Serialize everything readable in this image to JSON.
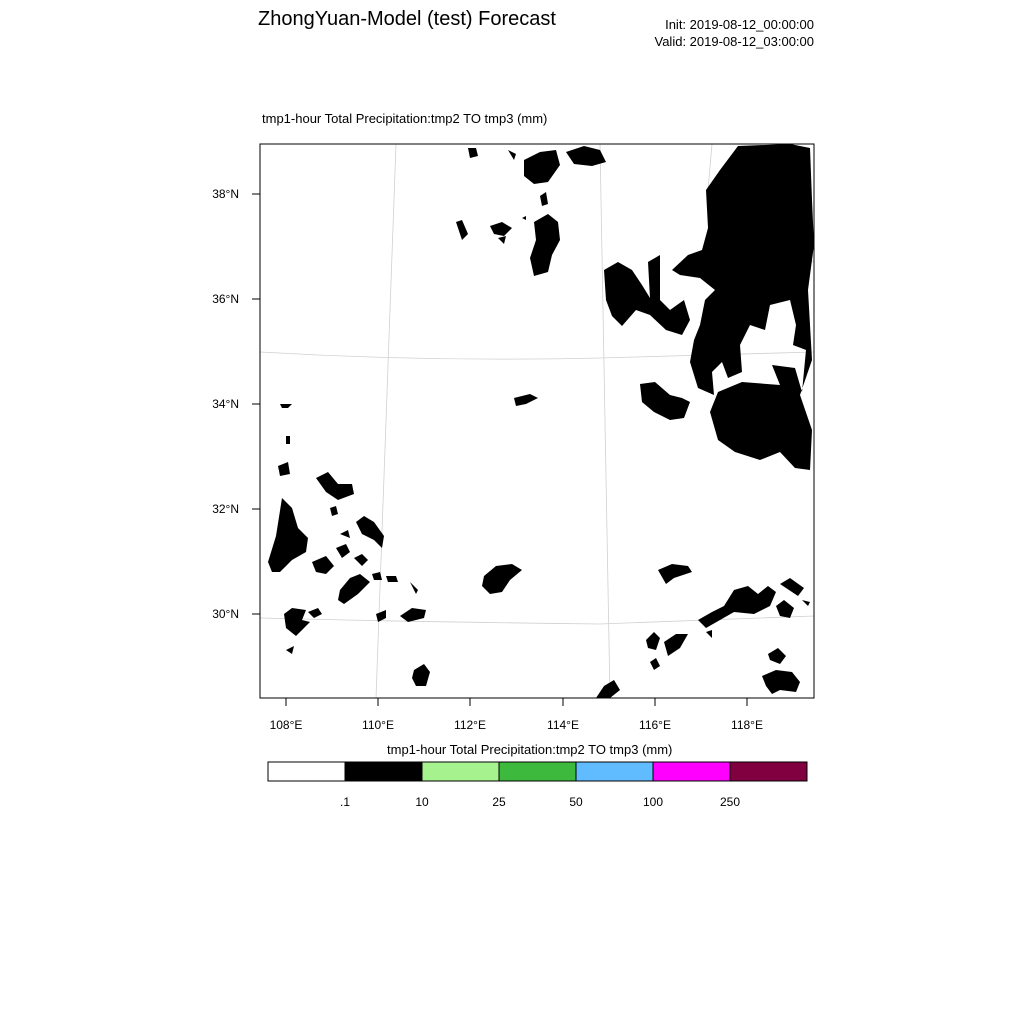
{
  "header": {
    "title": "ZhongYuan-Model (test) Forecast",
    "init": "Init: 2019-08-12_00:00:00",
    "valid": "Valid: 2019-08-12_03:00:00"
  },
  "plot_title": "tmp1-hour Total Precipitation:tmp2 TO tmp3   (mm)",
  "map": {
    "lat_ticks": [
      "38°N",
      "36°N",
      "34°N",
      "32°N",
      "30°N"
    ],
    "lon_ticks": [
      "108°E",
      "110°E",
      "112°E",
      "114°E",
      "116°E",
      "118°E"
    ],
    "fill_color": "#000000",
    "boundary_color": "#cccccc"
  },
  "legend": {
    "title": "tmp1-hour Total Precipitation:tmp2 TO tmp3  (mm)",
    "colors": [
      "#ffffff",
      "#000000",
      "#a6f28f",
      "#3dba3d",
      "#61bbff",
      "#ff00ff",
      "#800040"
    ],
    "labels": [
      ".1",
      "10",
      "25",
      "50",
      "100",
      "250"
    ]
  }
}
